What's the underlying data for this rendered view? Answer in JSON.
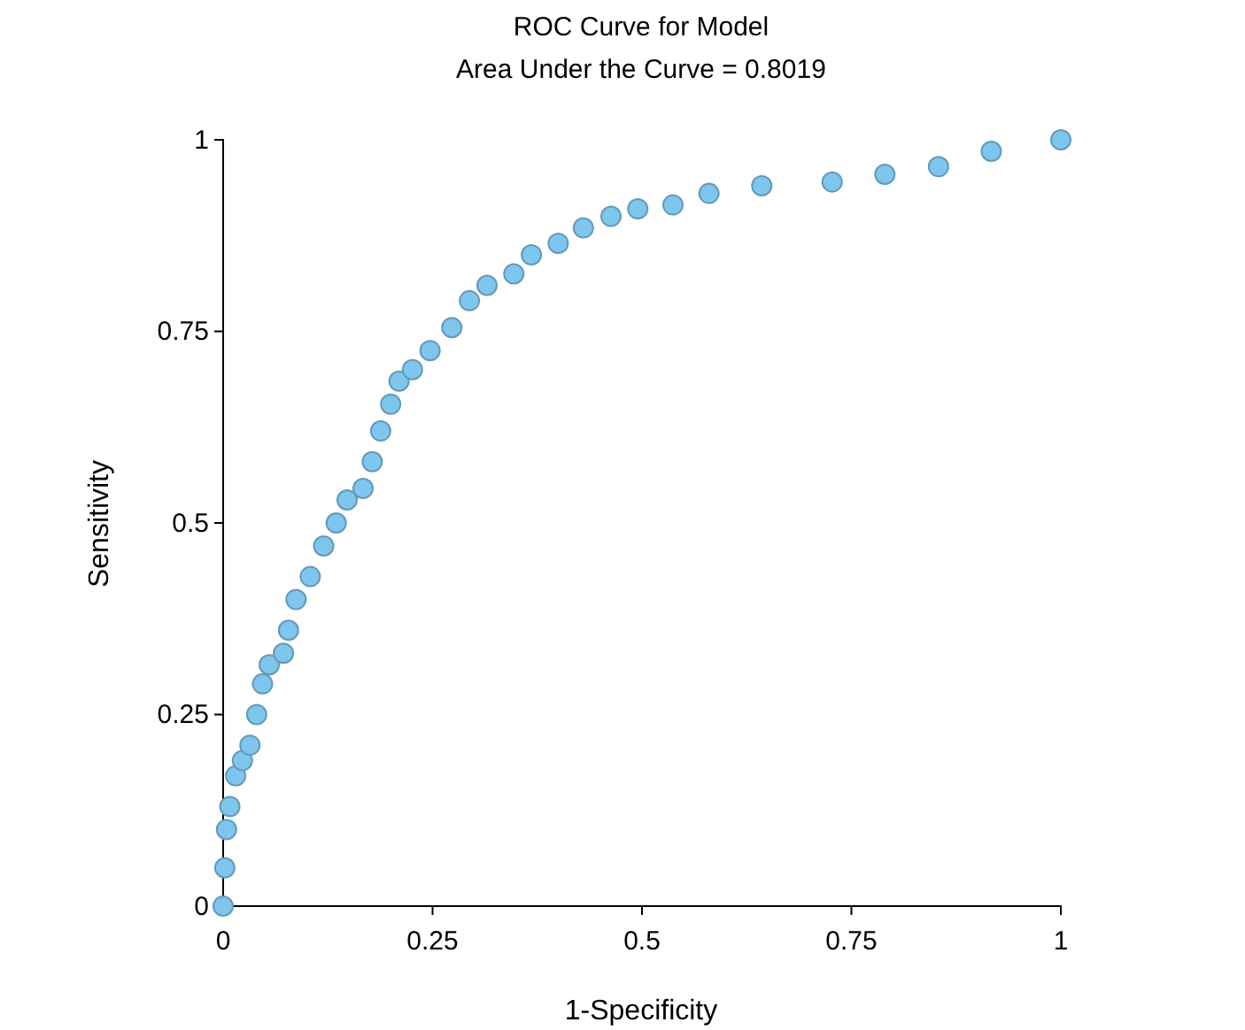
{
  "chart_data": {
    "type": "scatter",
    "title": "ROC Curve for Model",
    "subtitle": "Area Under the Curve = 0.8019",
    "xlabel": "1-Specificity",
    "ylabel": "Sensitivity",
    "xlim": [
      0,
      1
    ],
    "ylim": [
      0,
      1
    ],
    "xticks": [
      0,
      0.25,
      0.5,
      0.75,
      1
    ],
    "yticks": [
      0,
      0.25,
      0.5,
      0.75,
      1
    ],
    "grid": false,
    "marker": "circle",
    "series": [
      {
        "color": "#7fc6ee",
        "x": [
          0,
          0.002,
          0.004,
          0.008,
          0.015,
          0.023,
          0.032,
          0.04,
          0.047,
          0.055,
          0.072,
          0.078,
          0.087,
          0.104,
          0.12,
          0.135,
          0.148,
          0.167,
          0.178,
          0.188,
          0.2,
          0.21,
          0.226,
          0.247,
          0.273,
          0.294,
          0.315,
          0.347,
          0.368,
          0.4,
          0.43,
          0.463,
          0.495,
          0.537,
          0.58,
          0.643,
          0.727,
          0.79,
          0.854,
          0.917,
          1
        ],
        "values": [
          0,
          0.05,
          0.1,
          0.13,
          0.17,
          0.19,
          0.21,
          0.25,
          0.29,
          0.315,
          0.33,
          0.36,
          0.4,
          0.43,
          0.47,
          0.5,
          0.53,
          0.545,
          0.58,
          0.62,
          0.655,
          0.685,
          0.7,
          0.725,
          0.755,
          0.79,
          0.81,
          0.825,
          0.85,
          0.865,
          0.885,
          0.9,
          0.91,
          0.915,
          0.93,
          0.94,
          0.945,
          0.955,
          0.965,
          0.985,
          1
        ]
      }
    ]
  }
}
